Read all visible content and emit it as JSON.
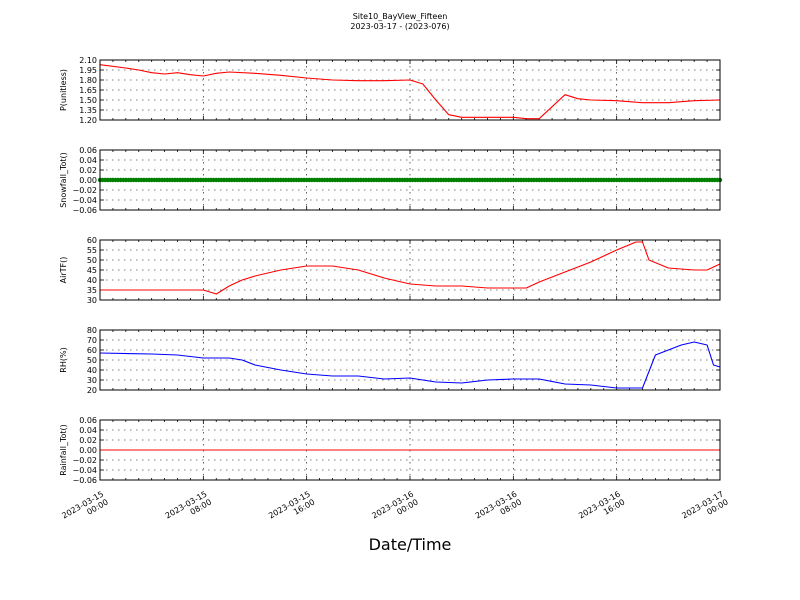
{
  "header": {
    "title": "Site10_BayView_Fifteen",
    "subtitle": "2023-03-17 - (2023-076)"
  },
  "xlabel": "Date/Time",
  "x_ticks": [
    {
      "line1": "2023-03-15",
      "line2": "00:00"
    },
    {
      "line1": "2023-03-15",
      "line2": "08:00"
    },
    {
      "line1": "2023-03-15",
      "line2": "16:00"
    },
    {
      "line1": "2023-03-16",
      "line2": "00:00"
    },
    {
      "line1": "2023-03-16",
      "line2": "08:00"
    },
    {
      "line1": "2023-03-16",
      "line2": "16:00"
    },
    {
      "line1": "2023-03-17",
      "line2": "00:00"
    }
  ],
  "colors": {
    "P": "#ff0000",
    "Snowfall": "#008000",
    "AirT": "#ff0000",
    "RH": "#0000ff",
    "Rainfall": "#ff0000"
  },
  "chart_data": [
    {
      "type": "line",
      "ylabel": "P(unitless)",
      "xlim": [
        "2023-03-15 00:00",
        "2023-03-17 00:00"
      ],
      "ylim": [
        1.2,
        2.1
      ],
      "yticks": [
        "2.10",
        "1.95",
        "1.80",
        "1.65",
        "1.50",
        "1.35",
        "1.20"
      ],
      "grid": true,
      "series": [
        {
          "x": [
            "2023-03-15 00:00",
            "2023-03-15 02:00",
            "2023-03-15 03:00",
            "2023-03-15 04:00",
            "2023-03-15 05:00",
            "2023-03-15 06:00",
            "2023-03-15 07:00",
            "2023-03-15 08:00",
            "2023-03-15 09:00",
            "2023-03-15 10:00",
            "2023-03-15 12:00",
            "2023-03-15 14:00",
            "2023-03-15 16:00",
            "2023-03-15 18:00",
            "2023-03-15 20:00",
            "2023-03-15 22:00",
            "2023-03-16 00:00",
            "2023-03-16 01:00",
            "2023-03-16 02:00",
            "2023-03-16 03:00",
            "2023-03-16 04:00",
            "2023-03-16 06:00",
            "2023-03-16 08:00",
            "2023-03-16 09:00",
            "2023-03-16 10:00",
            "2023-03-16 11:00",
            "2023-03-16 12:00",
            "2023-03-16 13:00",
            "2023-03-16 14:00",
            "2023-03-16 16:00",
            "2023-03-16 18:00",
            "2023-03-16 20:00",
            "2023-03-16 22:00",
            "2023-03-17 00:00"
          ],
          "y": [
            2.03,
            1.98,
            1.95,
            1.91,
            1.89,
            1.91,
            1.88,
            1.86,
            1.9,
            1.92,
            1.9,
            1.87,
            1.83,
            1.8,
            1.79,
            1.79,
            1.8,
            1.74,
            1.5,
            1.28,
            1.24,
            1.24,
            1.24,
            1.22,
            1.22,
            1.4,
            1.58,
            1.52,
            1.5,
            1.49,
            1.46,
            1.46,
            1.49,
            1.5
          ]
        }
      ]
    },
    {
      "type": "scatter",
      "ylabel": "Snowfall_Tot()",
      "xlim": [
        "2023-03-15 00:00",
        "2023-03-17 00:00"
      ],
      "ylim": [
        -0.06,
        0.06
      ],
      "yticks": [
        "0.06",
        "0.04",
        "0.02",
        "0.00",
        "−0.02",
        "−0.04",
        "−0.06"
      ],
      "grid": true,
      "series": [
        {
          "x_start": "2023-03-15 00:00",
          "x_end": "2023-03-17 00:00",
          "constant_y": 0.0
        }
      ]
    },
    {
      "type": "line",
      "ylabel": "AirTF()",
      "xlim": [
        "2023-03-15 00:00",
        "2023-03-17 00:00"
      ],
      "ylim": [
        30,
        60
      ],
      "yticks": [
        "60",
        "55",
        "50",
        "45",
        "40",
        "35",
        "30"
      ],
      "grid": true,
      "series": [
        {
          "x": [
            "2023-03-15 00:00",
            "2023-03-15 04:00",
            "2023-03-15 08:00",
            "2023-03-15 09:00",
            "2023-03-15 10:00",
            "2023-03-15 11:00",
            "2023-03-15 12:00",
            "2023-03-15 14:00",
            "2023-03-15 16:00",
            "2023-03-15 18:00",
            "2023-03-15 20:00",
            "2023-03-15 22:00",
            "2023-03-16 00:00",
            "2023-03-16 02:00",
            "2023-03-16 04:00",
            "2023-03-16 06:00",
            "2023-03-16 08:00",
            "2023-03-16 09:00",
            "2023-03-16 10:00",
            "2023-03-16 12:00",
            "2023-03-16 14:00",
            "2023-03-16 16:00",
            "2023-03-16 17:30",
            "2023-03-16 18:00",
            "2023-03-16 18:30",
            "2023-03-16 20:00",
            "2023-03-16 22:00",
            "2023-03-16 23:00",
            "2023-03-17 00:00"
          ],
          "y": [
            35,
            35,
            35,
            33,
            37,
            40,
            42,
            45,
            47,
            47,
            45,
            41,
            38,
            37,
            37,
            36,
            36,
            36,
            39,
            44,
            49,
            55,
            59,
            59,
            50,
            46,
            45,
            45,
            48
          ]
        }
      ]
    },
    {
      "type": "line",
      "ylabel": "RH(%)",
      "xlim": [
        "2023-03-15 00:00",
        "2023-03-17 00:00"
      ],
      "ylim": [
        20,
        80
      ],
      "yticks": [
        "80",
        "70",
        "60",
        "50",
        "40",
        "30",
        "20"
      ],
      "grid": true,
      "series": [
        {
          "x": [
            "2023-03-15 00:00",
            "2023-03-15 04:00",
            "2023-03-15 06:00",
            "2023-03-15 08:00",
            "2023-03-15 10:00",
            "2023-03-15 11:00",
            "2023-03-15 12:00",
            "2023-03-15 14:00",
            "2023-03-15 16:00",
            "2023-03-15 18:00",
            "2023-03-15 20:00",
            "2023-03-15 22:00",
            "2023-03-16 00:00",
            "2023-03-16 02:00",
            "2023-03-16 04:00",
            "2023-03-16 06:00",
            "2023-03-16 08:00",
            "2023-03-16 10:00",
            "2023-03-16 12:00",
            "2023-03-16 14:00",
            "2023-03-16 16:00",
            "2023-03-16 17:30",
            "2023-03-16 18:00",
            "2023-03-16 19:00",
            "2023-03-16 21:00",
            "2023-03-16 22:00",
            "2023-03-16 23:00",
            "2023-03-16 23:30",
            "2023-03-17 00:00"
          ],
          "y": [
            57,
            56,
            55,
            52,
            52,
            50,
            45,
            40,
            36,
            34,
            34,
            31,
            32,
            28,
            27,
            30,
            31,
            31,
            26,
            25,
            22,
            22,
            22,
            55,
            65,
            68,
            65,
            45,
            43
          ]
        }
      ]
    },
    {
      "type": "line",
      "ylabel": "Rainfall_Tot()",
      "xlim": [
        "2023-03-15 00:00",
        "2023-03-17 00:00"
      ],
      "ylim": [
        -0.06,
        0.06
      ],
      "yticks": [
        "0.06",
        "0.04",
        "0.02",
        "0.00",
        "−0.02",
        "−0.04",
        "−0.06"
      ],
      "grid": true,
      "series": [
        {
          "x": [
            "2023-03-15 00:00",
            "2023-03-17 00:00"
          ],
          "y": [
            0.0,
            0.0
          ]
        }
      ]
    }
  ]
}
